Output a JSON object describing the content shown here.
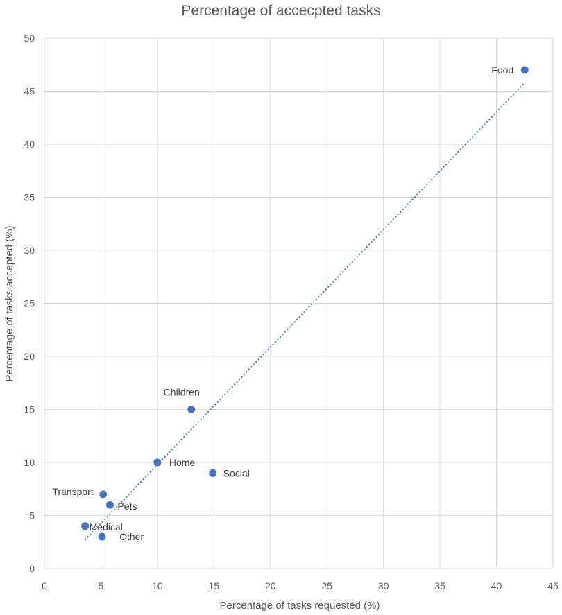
{
  "chart_data": {
    "type": "scatter",
    "title": "Percentage of accecpted tasks",
    "xlabel": "Percentage of tasks requested (%)",
    "ylabel": "Percentage of tasks accepted (%)",
    "xlim": [
      0,
      45
    ],
    "ylim": [
      0,
      50
    ],
    "xticks": [
      0,
      5,
      10,
      15,
      20,
      25,
      30,
      35,
      40,
      45
    ],
    "yticks": [
      0,
      5,
      10,
      15,
      20,
      25,
      30,
      35,
      40,
      45,
      50
    ],
    "grid": true,
    "points": [
      {
        "label": "Food",
        "x": 42.5,
        "y": 47
      },
      {
        "label": "Children",
        "x": 13,
        "y": 15
      },
      {
        "label": "Home",
        "x": 10,
        "y": 10
      },
      {
        "label": "Social",
        "x": 14.9,
        "y": 9
      },
      {
        "label": "Transport",
        "x": 5.2,
        "y": 7
      },
      {
        "label": "Pets",
        "x": 5.8,
        "y": 6
      },
      {
        "label": "Medical",
        "x": 3.6,
        "y": 4
      },
      {
        "label": "Other",
        "x": 5.1,
        "y": 3
      }
    ],
    "trendline": {
      "style": "dotted",
      "type": "linear",
      "from": [
        3.6,
        2.7
      ],
      "to": [
        42.5,
        45.8
      ]
    },
    "marker_color": "#4472c4",
    "trendline_color": "#4472c4"
  }
}
